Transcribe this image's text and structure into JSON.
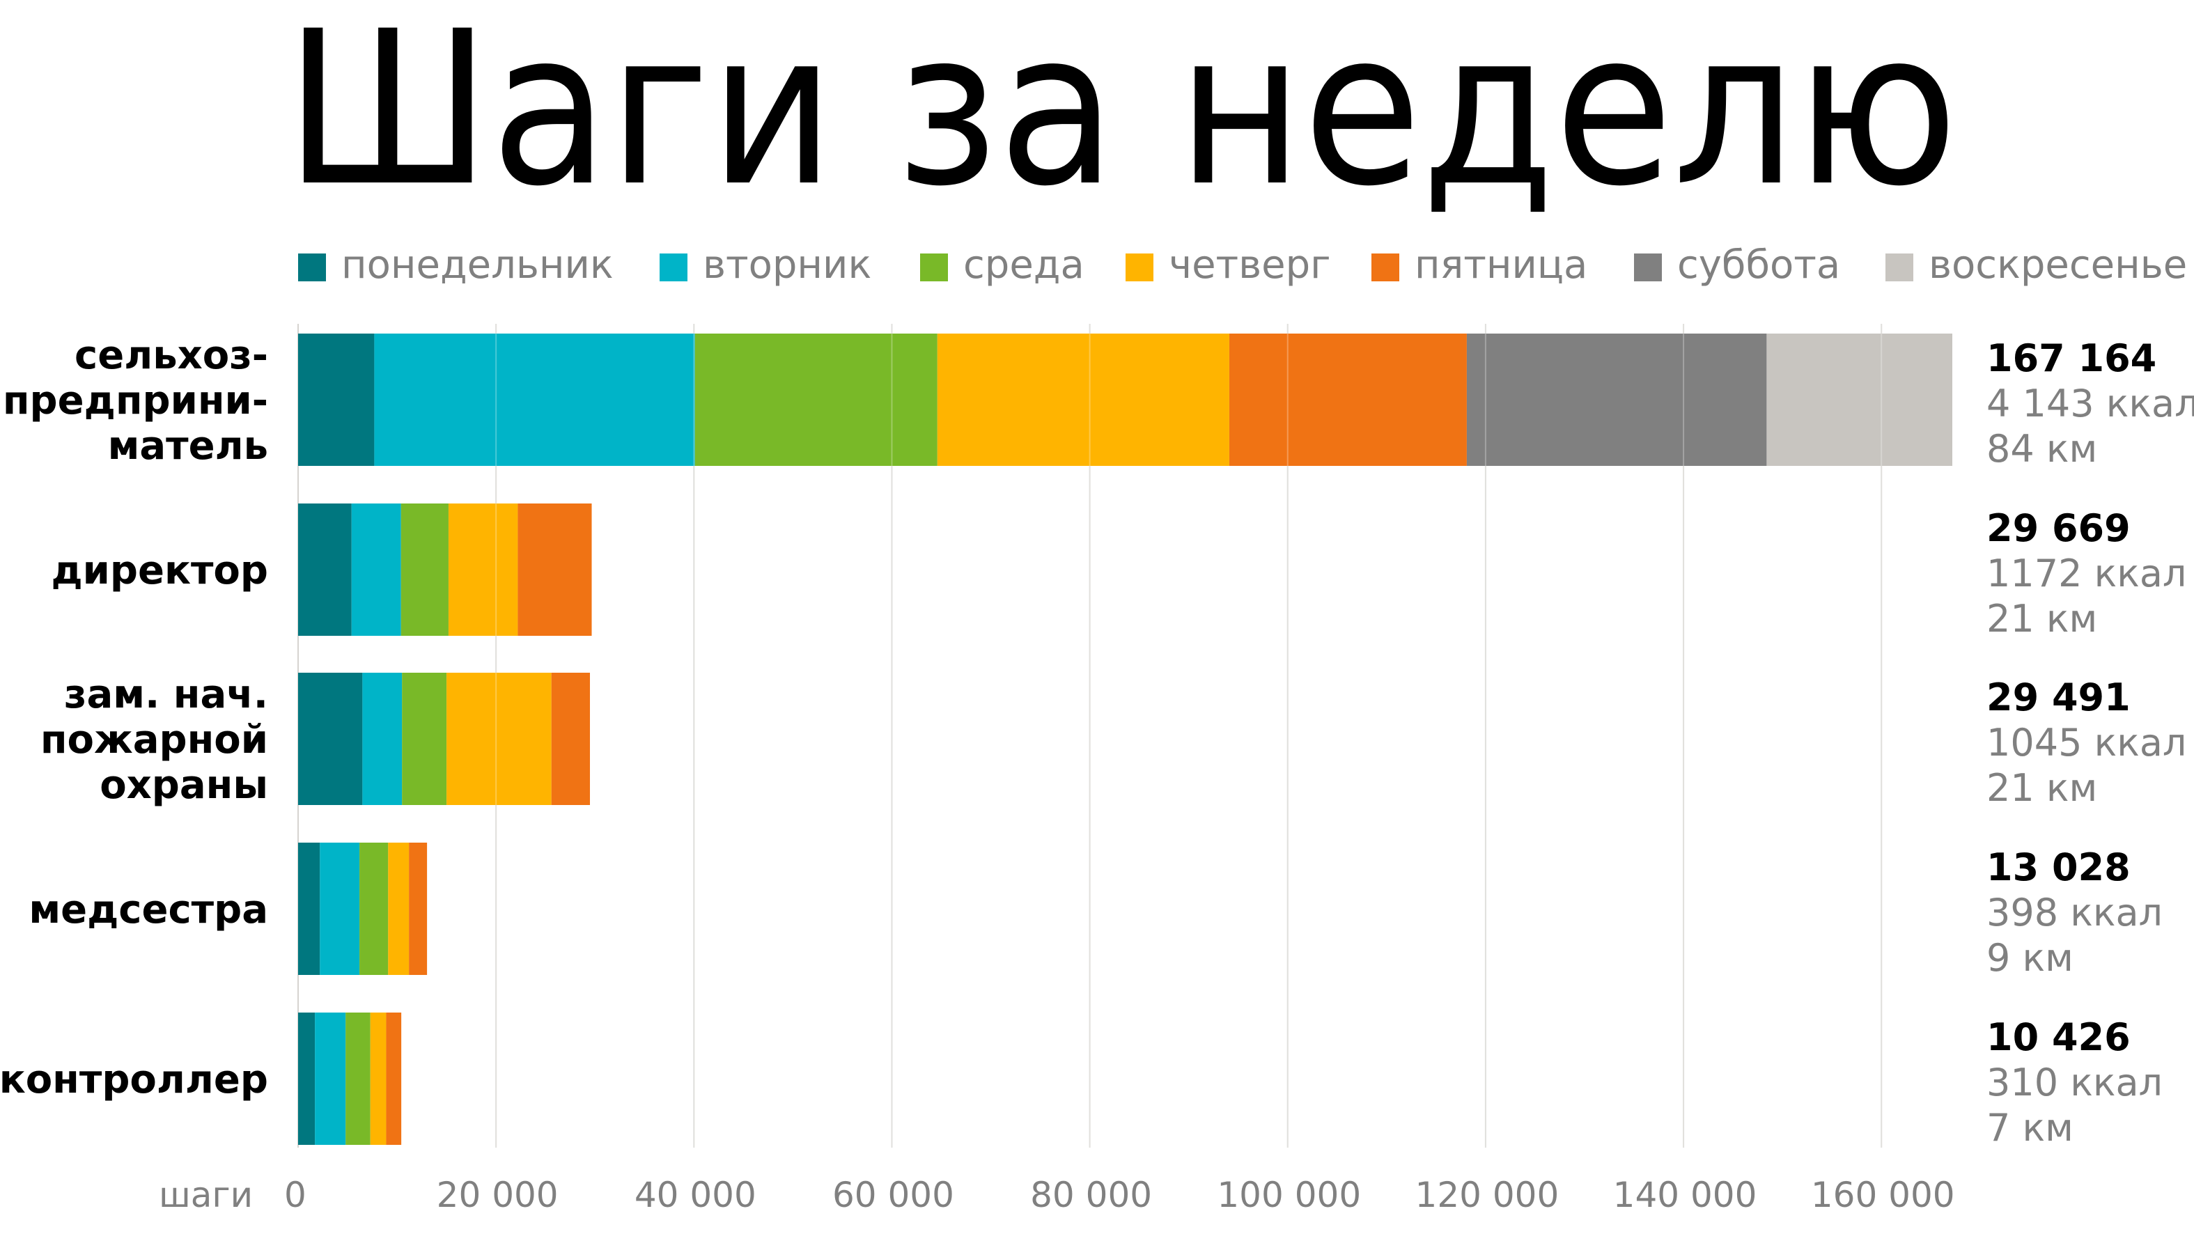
{
  "chart_data": {
    "type": "bar",
    "orientation": "horizontal",
    "stacked": true,
    "title": "Шаги за неделю",
    "xlabel": "шаги",
    "xlim": [
      0,
      167164
    ],
    "x_ticks": [
      0,
      20000,
      40000,
      60000,
      80000,
      100000,
      120000,
      140000,
      160000
    ],
    "x_tick_labels": [
      "0",
      "20 000",
      "40 000",
      "60 000",
      "80 000",
      "100 000",
      "120 000",
      "140 000",
      "160 000"
    ],
    "grid": "vertical",
    "legend_position": "top",
    "categories": [
      [
        "сельхоз-",
        "предприни-",
        "матель"
      ],
      [
        "директор"
      ],
      [
        "зам. нач.",
        "пожарной",
        "охраны"
      ],
      [
        "медсестра"
      ],
      [
        "контроллер"
      ]
    ],
    "series": [
      {
        "name": "понедельник",
        "color": "#00777f",
        "values": [
          7700,
          5400,
          6500,
          2200,
          1700
        ]
      },
      {
        "name": "вторник",
        "color": "#00b4c8",
        "values": [
          32400,
          5000,
          4000,
          4000,
          3100
        ]
      },
      {
        "name": "среда",
        "color": "#79b928",
        "values": [
          24500,
          4800,
          4500,
          2900,
          2500
        ]
      },
      {
        "name": "четверг",
        "color": "#ffb400",
        "values": [
          29500,
          7000,
          10600,
          2100,
          1600
        ]
      },
      {
        "name": "пятница",
        "color": "#f07314",
        "values": [
          24000,
          7469,
          3891,
          1828,
          1526
        ]
      },
      {
        "name": "суббота",
        "color": "#808080",
        "values": [
          30300,
          0,
          0,
          0,
          0
        ]
      },
      {
        "name": "воскресенье",
        "color": "#c8c5c0",
        "values": [
          18764,
          0,
          0,
          0,
          0
        ]
      }
    ],
    "totals": [
      {
        "steps": "167 164",
        "kcal": "4 143 ккал",
        "km": "84 км"
      },
      {
        "steps": "29 669",
        "kcal": "1172 ккал",
        "km": "21 км"
      },
      {
        "steps": "29 491",
        "kcal": "1045 ккал",
        "km": "21 км"
      },
      {
        "steps": "13 028",
        "kcal": "398 ккал",
        "km": "9 км"
      },
      {
        "steps": "10 426",
        "kcal": "310 ккал",
        "km": "7 км"
      }
    ]
  }
}
